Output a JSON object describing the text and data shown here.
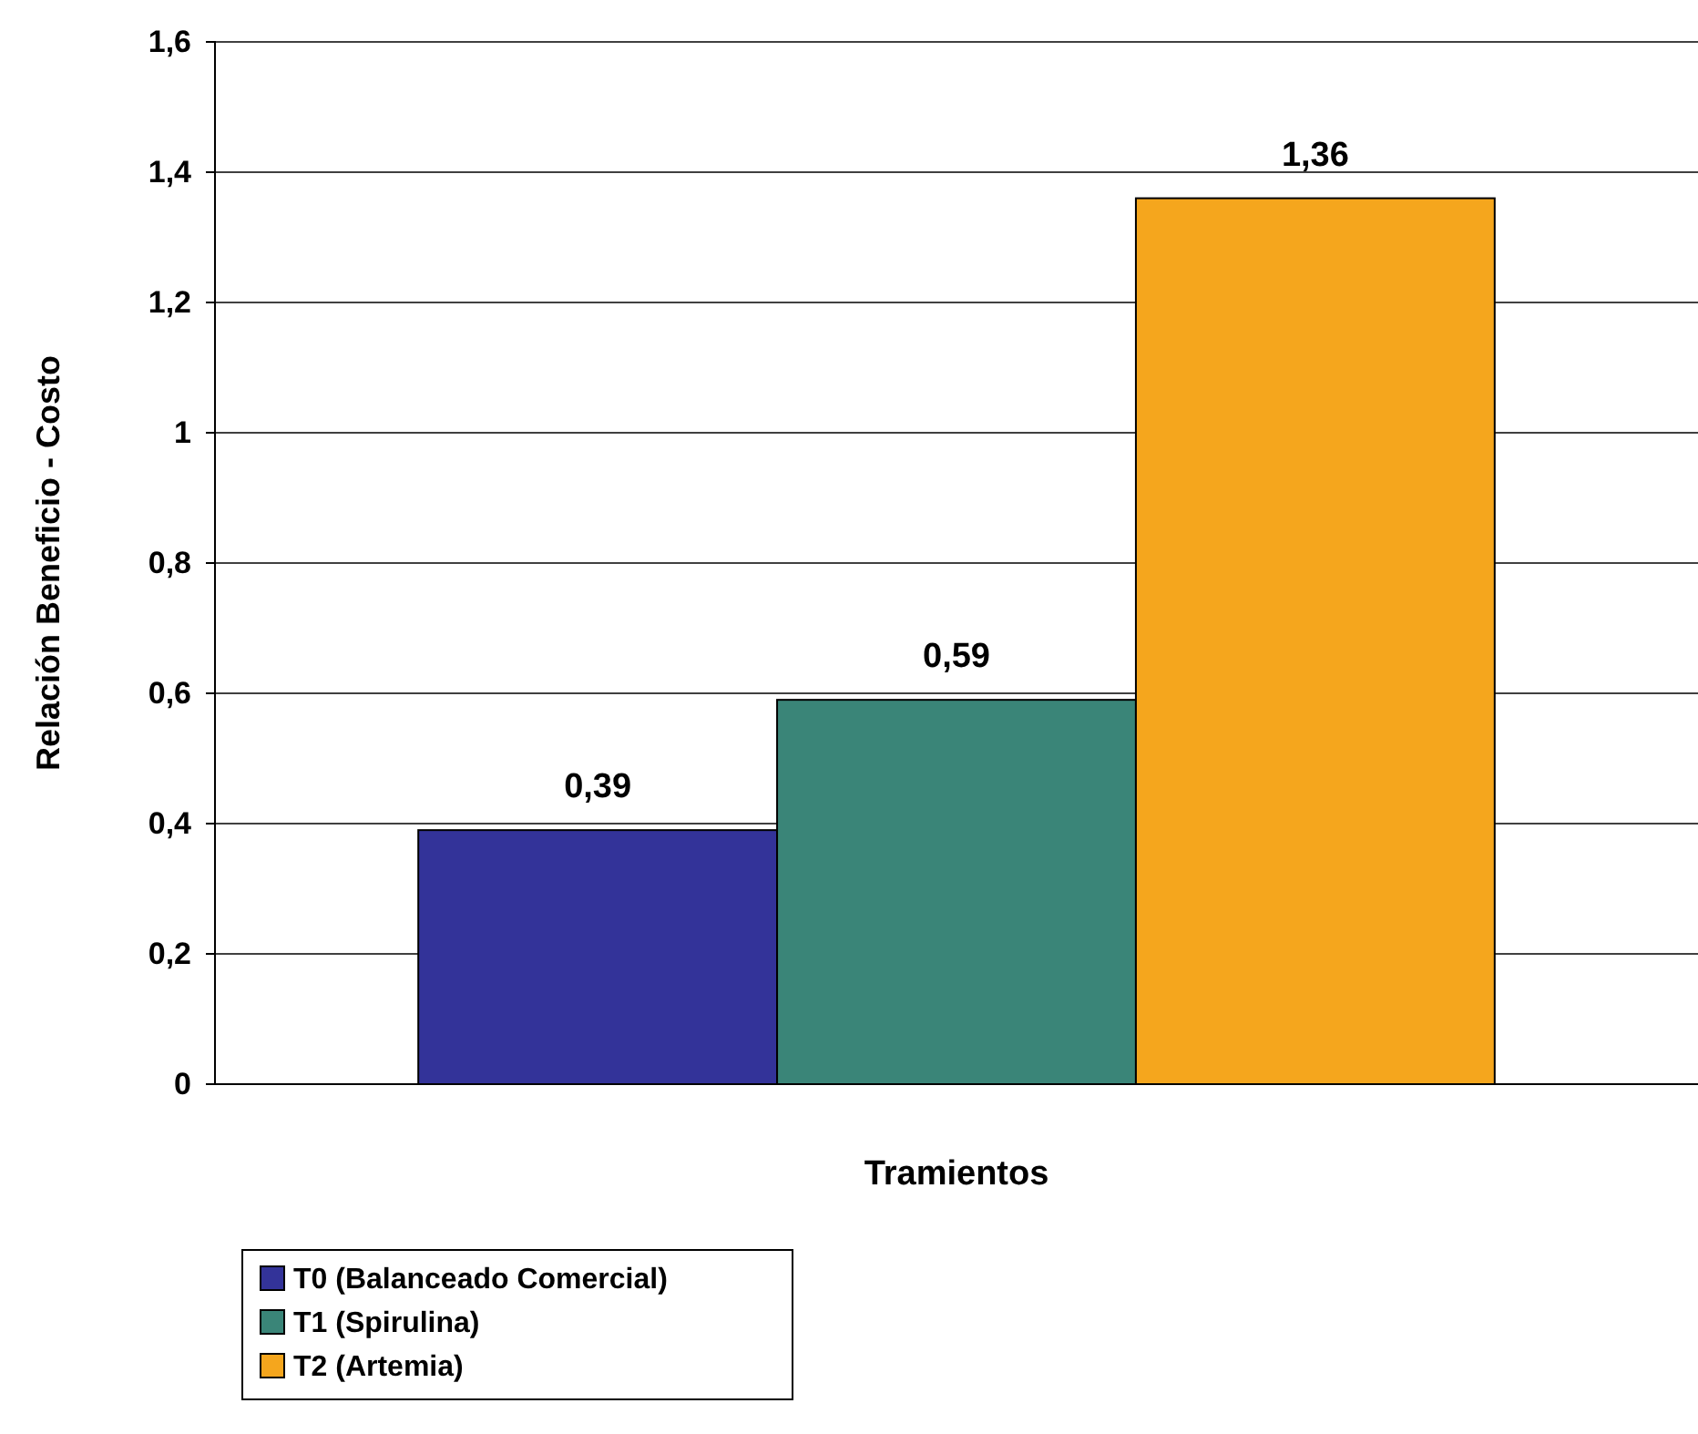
{
  "chart_data": {
    "type": "bar",
    "xlabel": "Tramientos",
    "ylabel": "Relación Beneficio - Costo",
    "categories": [
      null
    ],
    "series": [
      {
        "name": "T0 (Balanceado Comercial)",
        "color": "#333399",
        "values": [
          0.39
        ],
        "value_labels": [
          "0,39"
        ]
      },
      {
        "name": "T1 (Spirulina)",
        "color": "#3a8578",
        "values": [
          0.59
        ],
        "value_labels": [
          "0,59"
        ]
      },
      {
        "name": "T2 (Artemia)",
        "color": "#f5a61d",
        "values": [
          1.36
        ],
        "value_labels": [
          "1,36"
        ]
      }
    ],
    "ylim": [
      0,
      1.6
    ],
    "yticks": [
      0,
      {
        "value": 0.2,
        "label": "0,2"
      },
      {
        "value": 0.4,
        "label": "0,4"
      },
      {
        "value": 0.6,
        "label": "0,6"
      },
      {
        "value": 0.8,
        "label": "0,8"
      },
      1,
      {
        "value": 1.2,
        "label": "1,2"
      },
      {
        "value": 1.4,
        "label": "1,4"
      },
      {
        "value": 1.6,
        "label": "1,6"
      }
    ],
    "grid": "y",
    "legend": "bottom left"
  }
}
